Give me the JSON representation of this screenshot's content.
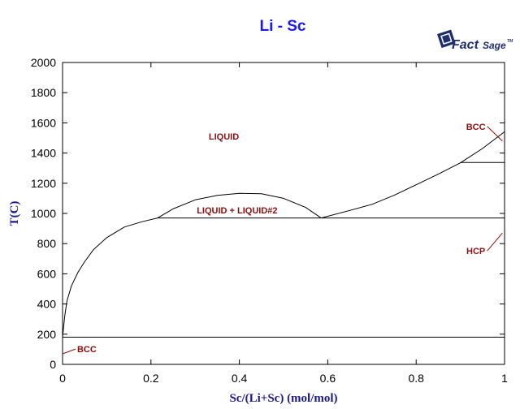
{
  "chart_data": {
    "type": "line",
    "title": "Li - Sc",
    "xlabel": "Sc/(Li+Sc) (mol/mol)",
    "ylabel": "T(C)",
    "xlim": [
      0,
      1
    ],
    "ylim": [
      0,
      2000
    ],
    "x_ticks": [
      "0",
      "0.2",
      "0.4",
      "0.6",
      "0.8",
      "1"
    ],
    "y_ticks": [
      "0",
      "200",
      "400",
      "600",
      "800",
      "1000",
      "1200",
      "1400",
      "1600",
      "1800",
      "2000"
    ],
    "grid": false,
    "series": [
      {
        "id": "liquidus-left",
        "points": [
          [
            0.0,
            180
          ],
          [
            0.005,
            320
          ],
          [
            0.01,
            420
          ],
          [
            0.02,
            520
          ],
          [
            0.035,
            610
          ],
          [
            0.05,
            680
          ],
          [
            0.07,
            760
          ],
          [
            0.1,
            840
          ],
          [
            0.14,
            910
          ],
          [
            0.18,
            945
          ],
          [
            0.215,
            970
          ]
        ]
      },
      {
        "id": "miscibility-gap",
        "points": [
          [
            0.215,
            970
          ],
          [
            0.25,
            1030
          ],
          [
            0.3,
            1090
          ],
          [
            0.35,
            1120
          ],
          [
            0.4,
            1133
          ],
          [
            0.45,
            1130
          ],
          [
            0.5,
            1100
          ],
          [
            0.55,
            1040
          ],
          [
            0.585,
            970
          ]
        ]
      },
      {
        "id": "liquidus-right",
        "points": [
          [
            0.585,
            970
          ],
          [
            0.65,
            1020
          ],
          [
            0.7,
            1060
          ],
          [
            0.75,
            1120
          ],
          [
            0.8,
            1190
          ],
          [
            0.85,
            1260
          ],
          [
            0.9,
            1335
          ],
          [
            0.95,
            1430
          ],
          [
            1.0,
            1541
          ]
        ]
      },
      {
        "id": "monotectic-line",
        "points": [
          [
            0.215,
            970
          ],
          [
            1.0,
            970
          ]
        ]
      },
      {
        "id": "bcc-hcp-transition-line",
        "points": [
          [
            0.9,
            1337
          ],
          [
            1.0,
            1337
          ]
        ]
      },
      {
        "id": "eutectic-line",
        "points": [
          [
            0.0,
            180
          ],
          [
            1.0,
            180
          ]
        ]
      },
      {
        "id": "right-edge-line",
        "points": [
          [
            1.0,
            970
          ],
          [
            1.0,
            1541
          ]
        ]
      }
    ],
    "annotations": [
      {
        "text": "LIQUID",
        "x": 0.365,
        "y": 1490
      },
      {
        "text": "LIQUID + LIQUID#2",
        "x": 0.395,
        "y": 1000
      },
      {
        "text": "BCC",
        "x": 0.935,
        "y": 1555,
        "leader_to": [
          0.995,
          1480
        ]
      },
      {
        "text": "HCP",
        "x": 0.935,
        "y": 730,
        "leader_to": [
          0.995,
          870
        ]
      },
      {
        "text": "BCC",
        "x": 0.055,
        "y": 80,
        "leader_to": [
          0.0,
          70
        ]
      }
    ]
  },
  "logo": {
    "brand_bold": "Fact",
    "brand_script": "Sage",
    "trademark": "TM"
  }
}
